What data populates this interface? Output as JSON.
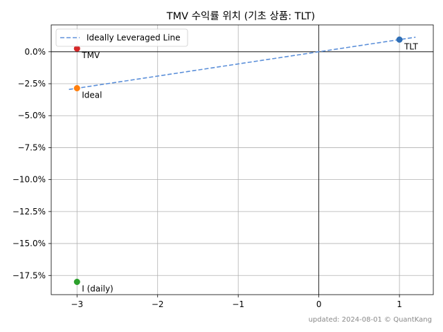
{
  "chart_data": {
    "type": "scatter",
    "title": "TMV 수익률 위치 (기초 상품: TLT)",
    "xlabel": "",
    "ylabel": "",
    "xlim": [
      -3.32,
      1.42
    ],
    "ylim": [
      -19.0,
      2.1
    ],
    "x_ticks": [
      -3,
      -2,
      -1,
      0,
      1
    ],
    "x_tick_labels": [
      "−3",
      "−2",
      "−1",
      "0",
      "1"
    ],
    "y_ticks": [
      0,
      -2.5,
      -5,
      -7.5,
      -10,
      -12.5,
      -15,
      -17.5
    ],
    "y_tick_labels": [
      "0.0%",
      "−2.5%",
      "−5.0%",
      "−7.5%",
      "−10.0%",
      "−12.5%",
      "−15.0%",
      "−17.5%"
    ],
    "grid": true,
    "legend": {
      "position": "top-left",
      "entries": [
        {
          "label": "Ideally Leveraged Line",
          "style": "dashed",
          "color": "#5b8fd9"
        }
      ]
    },
    "line": {
      "name": "Ideally Leveraged Line",
      "x": [
        -3.1,
        1.2
      ],
      "y": [
        -2.95,
        1.14
      ],
      "color": "#5b8fd9",
      "style": "dashed"
    },
    "points": [
      {
        "label": "TLT",
        "x": 1,
        "y": 0.95,
        "color": "#2f6fb7"
      },
      {
        "label": "TMV",
        "x": -3,
        "y": 0.25,
        "color": "#d62728"
      },
      {
        "label": "Ideal",
        "x": -3,
        "y": -2.85,
        "color": "#ff7f0e"
      },
      {
        "label": "I (daily)",
        "x": -3,
        "y": -18.0,
        "color": "#2ca02c"
      }
    ]
  },
  "footer": "updated: 2024-08-01 © QuantKang"
}
